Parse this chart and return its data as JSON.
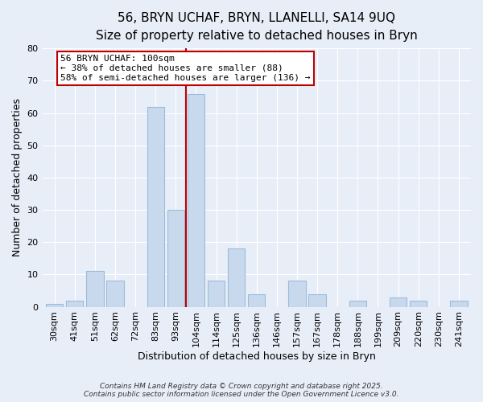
{
  "title": "56, BRYN UCHAF, BRYN, LLANELLI, SA14 9UQ",
  "subtitle": "Size of property relative to detached houses in Bryn",
  "xlabel": "Distribution of detached houses by size in Bryn",
  "ylabel": "Number of detached properties",
  "categories": [
    "30sqm",
    "41sqm",
    "51sqm",
    "62sqm",
    "72sqm",
    "83sqm",
    "93sqm",
    "104sqm",
    "114sqm",
    "125sqm",
    "136sqm",
    "146sqm",
    "157sqm",
    "167sqm",
    "178sqm",
    "188sqm",
    "199sqm",
    "209sqm",
    "220sqm",
    "230sqm",
    "241sqm"
  ],
  "values": [
    1,
    2,
    11,
    8,
    0,
    62,
    30,
    66,
    8,
    18,
    4,
    0,
    8,
    4,
    0,
    2,
    0,
    3,
    2,
    0,
    2
  ],
  "bar_color": "#c8d9ee",
  "bar_edge_color": "#9bbcd9",
  "bar_width": 0.85,
  "ylim": [
    0,
    80
  ],
  "yticks": [
    0,
    10,
    20,
    30,
    40,
    50,
    60,
    70,
    80
  ],
  "marker_label": "56 BRYN UCHAF: 100sqm",
  "marker_line_color": "#bb0000",
  "annotation_line1": "← 38% of detached houses are smaller (88)",
  "annotation_line2": "58% of semi-detached houses are larger (136) →",
  "annotation_box_facecolor": "#ffffff",
  "annotation_border_color": "#bb0000",
  "background_color": "#e8eef8",
  "plot_bg_color": "#e8eef8",
  "grid_color": "#ffffff",
  "title_fontsize": 11,
  "subtitle_fontsize": 10,
  "axis_label_fontsize": 9,
  "tick_fontsize": 8,
  "annotation_fontsize": 8,
  "footer_line1": "Contains HM Land Registry data © Crown copyright and database right 2025.",
  "footer_line2": "Contains public sector information licensed under the Open Government Licence v3.0.",
  "footer_fontsize": 6.5
}
